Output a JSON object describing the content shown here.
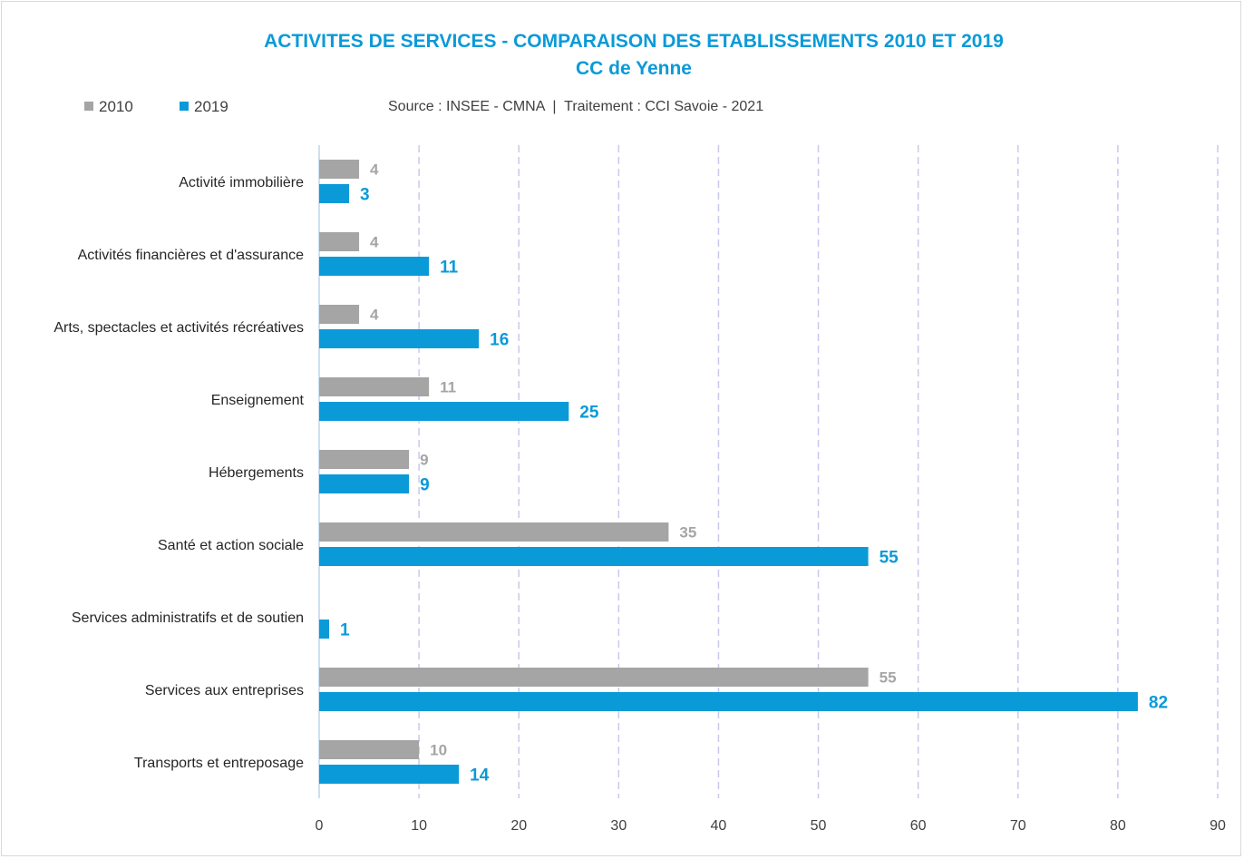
{
  "title": "ACTIVITES DE SERVICES - COMPARAISON DES ETABLISSEMENTS 2010 ET 2019",
  "subtitle": "CC de Yenne",
  "source": "Source : INSEE - CMNA  |  Traitement : CCI Savoie - 2021",
  "colors": {
    "series_2010": "#a5a5a5",
    "series_2019": "#0a9ad8",
    "grid": "#c9c9f0",
    "axis": "#bcd6ee"
  },
  "chart_data": {
    "type": "bar",
    "orientation": "horizontal",
    "title": "ACTIVITES DE SERVICES - COMPARAISON DES ETABLISSEMENTS 2010 ET 2019",
    "subtitle": "CC de Yenne",
    "categories": [
      "Activité immobilière",
      "Activités financières et d'assurance",
      "Arts, spectacles et activités récréatives",
      "Enseignement",
      "Hébergements",
      "Santé et action sociale",
      "Services administratifs et de soutien",
      "Services aux entreprises",
      "Transports et entreposage"
    ],
    "series": [
      {
        "name": "2010",
        "values": [
          4,
          4,
          4,
          11,
          9,
          35,
          null,
          55,
          10
        ]
      },
      {
        "name": "2019",
        "values": [
          3,
          11,
          16,
          25,
          9,
          55,
          1,
          82,
          14
        ]
      }
    ],
    "xlim": [
      0,
      90
    ],
    "xticks": [
      "0",
      "10",
      "20",
      "30",
      "40",
      "50",
      "60",
      "70",
      "80",
      "90"
    ],
    "xlabel": "",
    "ylabel": "",
    "grid": true,
    "legend_position": "top-left"
  }
}
